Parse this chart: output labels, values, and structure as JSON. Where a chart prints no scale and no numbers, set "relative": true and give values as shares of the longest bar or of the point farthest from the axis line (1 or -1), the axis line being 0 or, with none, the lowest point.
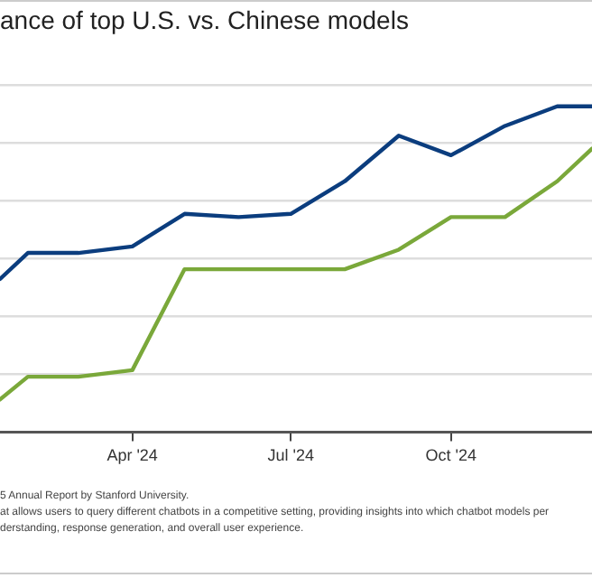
{
  "chart_data": {
    "type": "line",
    "title": "ance of top U.S. vs. Chinese models",
    "x": [
      "2024-01-16",
      "2024-02-01",
      "2024-03-01",
      "2024-04-01",
      "2024-05-01",
      "2024-06-01",
      "2024-07-01",
      "2024-08-01",
      "2024-09-01",
      "2024-10-01",
      "2024-11-01",
      "2024-12-01",
      "2024-12-21"
    ],
    "xlim": [
      "2024-01-16",
      "2024-12-21"
    ],
    "xticks": [
      {
        "value": "2024-04-01",
        "label": "Apr '24"
      },
      {
        "value": "2024-07-01",
        "label": "Jul '24"
      },
      {
        "value": "2024-10-01",
        "label": "Oct '24"
      }
    ],
    "relative": true,
    "series": [
      {
        "color": "#0b3d7e",
        "values": [
          0.47,
          0.55,
          0.55,
          0.57,
          0.67,
          0.66,
          0.67,
          0.77,
          0.91,
          0.85,
          0.94,
          1,
          1
        ]
      },
      {
        "color": "#7aa83a",
        "values": [
          0.1,
          0.17,
          0.17,
          0.19,
          0.5,
          0.5,
          0.5,
          0.5,
          0.56,
          0.66,
          0.66,
          0.77,
          0.87
        ]
      }
    ],
    "grid": "y",
    "legend": false,
    "marker": "none",
    "line_style": "solid",
    "annotations": [
      "5 Annual Report by Stanford University.",
      "at allows users to query different chatbots in a competitive setting, providing insights into which chatbot models per",
      "derstanding, response generation, and overall user experience."
    ]
  }
}
